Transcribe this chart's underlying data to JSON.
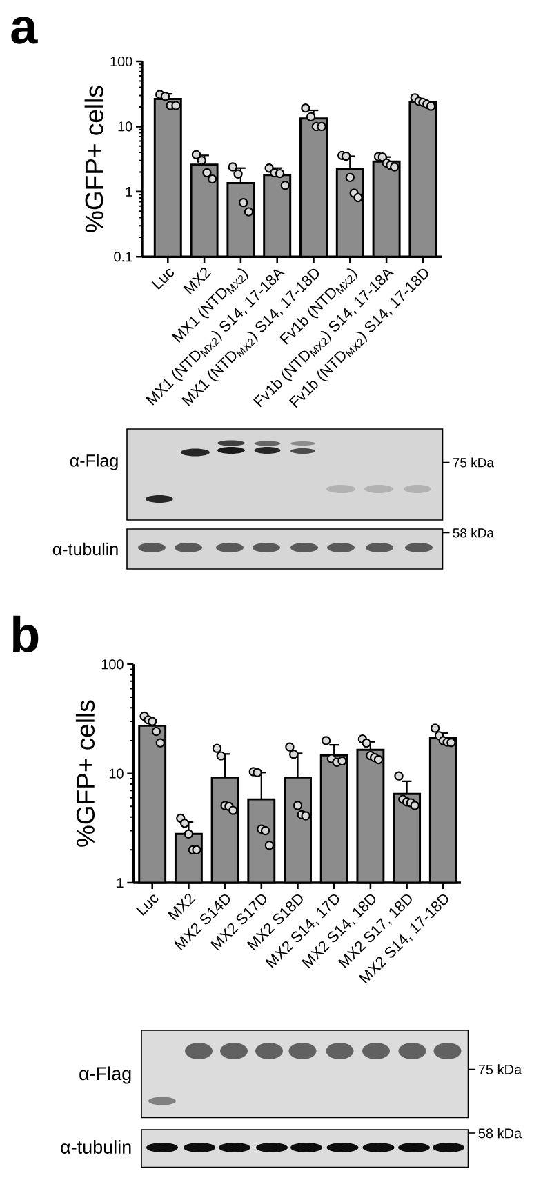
{
  "chart_data": [
    {
      "type": "bar",
      "title": "a",
      "ylabel": "%GFP+ cells",
      "log": "y",
      "ylim": [
        0.1,
        100
      ],
      "yticks": [
        0.1,
        1,
        10,
        100
      ],
      "categories": [
        "Luc",
        "MX2",
        "MX1 (NTD$_{MX2}$)",
        "MX1 (NTD$_{MX2}$) S14, 17-18A",
        "MX1 (NTD$_{MX2}$) S14, 17-18D",
        "Fv1b (NTD$_{MX2}$)",
        "Fv1b (NTD$_{MX2}$) S14, 17-18A",
        "Fv1b (NTD$_{MX2}$) S14, 17-18D"
      ],
      "series": [
        {
          "color": "#8c8c8c",
          "values": [
            26.5,
            2.6,
            1.35,
            1.8,
            13.3,
            2.2,
            2.9,
            23.5
          ],
          "errors": [
            [
              26.5,
              31.7
            ],
            [
              2.6,
              3.6
            ],
            [
              1.35,
              2.3
            ],
            [
              1.8,
              2.3
            ],
            [
              13.3,
              17.7
            ],
            [
              2.2,
              3.5
            ],
            [
              2.9,
              3.4
            ],
            [
              23.5,
              26
            ]
          ]
        },
        {
          "type": "scatter",
          "color": "#d9d9d9",
          "marker": "circle",
          "x": [
            "Luc",
            "Luc",
            "Luc",
            "Luc",
            "MX2",
            "MX2",
            "MX2",
            "MX2",
            "MX1 (NTD$_{MX2}$)",
            "MX1 (NTD$_{MX2}$)",
            "MX1 (NTD$_{MX2}$)",
            "MX1 (NTD$_{MX2}$)",
            "MX1 (NTD$_{MX2}$) S14, 17-18A",
            "MX1 (NTD$_{MX2}$) S14, 17-18A",
            "MX1 (NTD$_{MX2}$) S14, 17-18A",
            "MX1 (NTD$_{MX2}$) S14, 17-18A",
            "MX1 (NTD$_{MX2}$) S14, 17-18D",
            "MX1 (NTD$_{MX2}$) S14, 17-18D",
            "MX1 (NTD$_{MX2}$) S14, 17-18D",
            "MX1 (NTD$_{MX2}$) S14, 17-18D",
            "Fv1b (NTD$_{MX2}$)",
            "Fv1b (NTD$_{MX2}$)",
            "Fv1b (NTD$_{MX2}$)",
            "Fv1b (NTD$_{MX2}$)",
            "Fv1b (NTD$_{MX2}$)",
            "Fv1b (NTD$_{MX2}$) S14, 17-18A",
            "Fv1b (NTD$_{MX2}$) S14, 17-18A",
            "Fv1b (NTD$_{MX2}$) S14, 17-18A",
            "Fv1b (NTD$_{MX2}$) S14, 17-18A",
            "Fv1b (NTD$_{MX2}$) S14, 17-18A",
            "Fv1b (NTD$_{MX2}$) S14, 17-18D",
            "Fv1b (NTD$_{MX2}$) S14, 17-18D",
            "Fv1b (NTD$_{MX2}$) S14, 17-18D",
            "Fv1b (NTD$_{MX2}$) S14, 17-18D",
            "Fv1b (NTD$_{MX2}$) S14, 17-18D"
          ],
          "values": [
            31,
            29,
            21,
            21,
            3.7,
            3.0,
            1.95,
            1.56,
            2.4,
            1.87,
            0.68,
            0.49,
            2.3,
            1.95,
            1.9,
            1.25,
            19.2,
            14.1,
            10,
            10,
            3.6,
            3.5,
            1.65,
            0.95,
            0.81,
            3.45,
            3.4,
            2.75,
            2.55,
            2.4,
            27.6,
            24.4,
            23.5,
            22,
            20.5
          ]
        }
      ],
      "annotations": [
        "α-Flag",
        "75 kDa",
        "α-tubulin",
        "58 kDa"
      ]
    },
    {
      "type": "bar",
      "title": "b",
      "ylabel": "%GFP+ cells",
      "log": "y",
      "ylim": [
        1,
        100
      ],
      "yticks": [
        1,
        10,
        100
      ],
      "categories": [
        "Luc",
        "MX2",
        "MX2 S14D",
        "MX2 S17D",
        "MX2 S18D",
        "MX2 S14, 17D",
        "MX2 S14, 18D",
        "MX2 S17, 18D",
        "MX2 S14, 17-18D"
      ],
      "series": [
        {
          "color": "#8c8c8c",
          "values": [
            27.4,
            2.8,
            9.2,
            5.8,
            9.2,
            14.7,
            16.5,
            6.5,
            21.2
          ],
          "errors": [
            [
              27.4,
              31
            ],
            [
              2.8,
              3.6
            ],
            [
              9.2,
              15.1
            ],
            [
              5.8,
              10.2
            ],
            [
              9.2,
              15.3
            ],
            [
              14.7,
              18.3
            ],
            [
              16.5,
              19.5
            ],
            [
              6.5,
              8.5
            ],
            [
              21.2,
              23.4
            ]
          ]
        },
        {
          "type": "scatter",
          "color": "#d9d9d9",
          "marker": "circle",
          "x": [
            "Luc",
            "Luc",
            "Luc",
            "Luc",
            "Luc",
            "MX2",
            "MX2",
            "MX2",
            "MX2",
            "MX2",
            "MX2 S14D",
            "MX2 S14D",
            "MX2 S14D",
            "MX2 S14D",
            "MX2 S14D",
            "MX2 S17D",
            "MX2 S17D",
            "MX2 S17D",
            "MX2 S17D",
            "MX2 S17D",
            "MX2 S18D",
            "MX2 S18D",
            "MX2 S18D",
            "MX2 S18D",
            "MX2 S18D",
            "MX2 S14, 17D",
            "MX2 S14, 17D",
            "MX2 S14, 17D",
            "MX2 S14, 17D",
            "MX2 S14, 18D",
            "MX2 S14, 18D",
            "MX2 S14, 18D",
            "MX2 S14, 18D",
            "MX2 S14, 18D",
            "MX2 S17, 18D",
            "MX2 S17, 18D",
            "MX2 S17, 18D",
            "MX2 S17, 18D",
            "MX2 S17, 18D",
            "MX2 S14, 17-18D",
            "MX2 S14, 17-18D",
            "MX2 S14, 17-18D",
            "MX2 S14, 17-18D",
            "MX2 S14, 17-18D"
          ],
          "values": [
            33.5,
            31,
            30,
            24.3,
            19.1,
            3.9,
            3.5,
            2.8,
            2.0,
            2.0,
            17,
            14.5,
            5.1,
            5.0,
            4.6,
            10.4,
            10.2,
            3.1,
            3.0,
            2.2,
            17.5,
            15,
            5.1,
            4.2,
            4.1,
            20,
            13.7,
            12.7,
            13.0,
            20.7,
            19,
            14.6,
            14,
            13.4,
            9.5,
            5.8,
            5.5,
            5.4,
            5.1,
            26,
            22.2,
            20,
            19.4,
            19.2
          ]
        }
      ],
      "annotations": [
        "α-Flag",
        "75 kDa",
        "α-tubulin",
        "58 kDa"
      ]
    }
  ]
}
